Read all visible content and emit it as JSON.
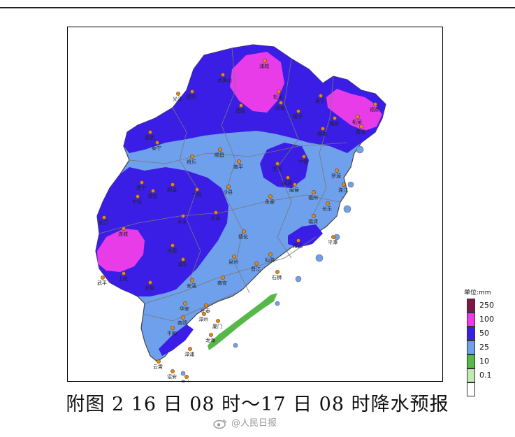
{
  "caption": "附图 2  16 日 08 时～17 日 08 时降水预报",
  "watermark": "@人民日报",
  "legend": {
    "title": "单位:mm",
    "items": [
      {
        "label": "250",
        "color": "#7a1848"
      },
      {
        "label": "100",
        "color": "#e83ce8"
      },
      {
        "label": "50",
        "color": "#3a1ee6"
      },
      {
        "label": "25",
        "color": "#6fa0ec"
      },
      {
        "label": "10",
        "color": "#55b848"
      },
      {
        "label": "0.1",
        "color": "#bfeab0"
      },
      {
        "label": "",
        "color": "#ffffff"
      }
    ]
  },
  "colors": {
    "band_50_100": "#3a1ee6",
    "band_100_250": "#e83ce8",
    "band_25_50": "#6fa0ec",
    "band_10_25": "#55b848",
    "county_line": "#777777",
    "city_dot": "#e08a1e"
  },
  "city_labels": [
    "浦城",
    "武夷山",
    "松溪",
    "政和",
    "寿宁",
    "福鼎",
    "柘荣",
    "霞浦",
    "建阳",
    "建瓯",
    "周宁",
    "福安",
    "屏南",
    "古田",
    "宁德",
    "邵武",
    "光泽",
    "泰宁",
    "将乐",
    "顺昌",
    "南平",
    "闽清",
    "罗源",
    "连江",
    "福州",
    "长乐",
    "建宁",
    "宁化",
    "清流",
    "明溪",
    "三明",
    "沙县",
    "尤溪",
    "永泰",
    "闽侯",
    "福清",
    "平潭",
    "长汀",
    "连城",
    "永安",
    "大田",
    "德化",
    "仙游",
    "莆田",
    "上杭",
    "漳平",
    "安溪",
    "南安",
    "泉州",
    "晋江",
    "石狮",
    "武平",
    "龙岩",
    "华安",
    "长泰",
    "厦门",
    "漳州",
    "平和",
    "南靖",
    "龙海",
    "漳浦",
    "云霄",
    "诏安",
    "东山"
  ]
}
